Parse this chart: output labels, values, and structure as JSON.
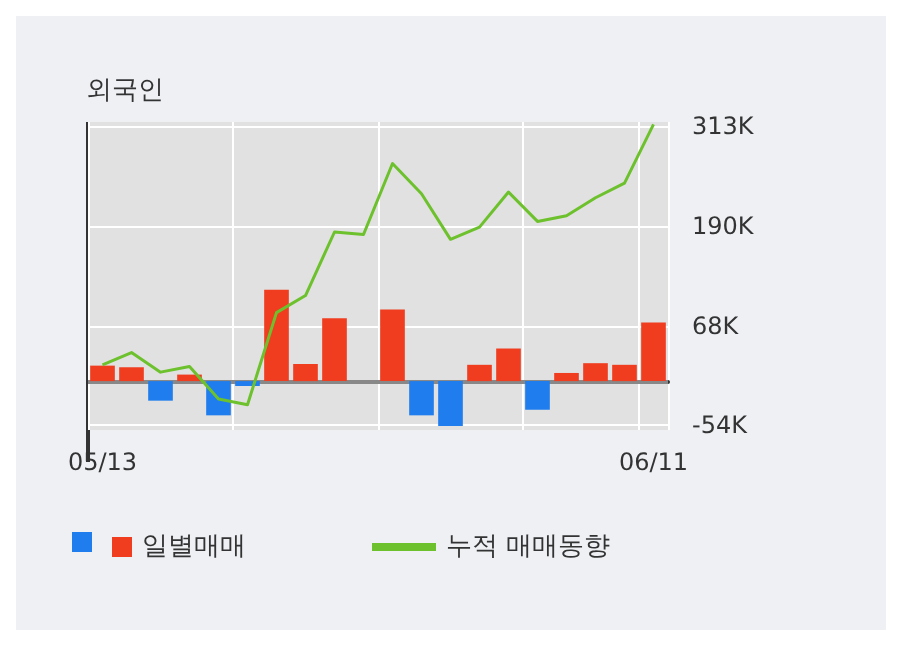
{
  "chart_data": {
    "type": "bar",
    "title": "외국인",
    "categories": [
      "05/13",
      null,
      null,
      null,
      null,
      null,
      null,
      null,
      null,
      null,
      null,
      null,
      null,
      null,
      null,
      null,
      null,
      null,
      null,
      "06/11"
    ],
    "series": [
      {
        "name": "일별매매",
        "colors": [
          "#f03c1f",
          "#f03c1f",
          "#1f7ded",
          "#f03c1f",
          "#1f7ded",
          "#1f7ded",
          "#f03c1f",
          "#f03c1f",
          "#f03c1f",
          "#f03c1f",
          "#f03c1f",
          "#1f7ded",
          "#1f7ded",
          "#f03c1f",
          "#f03c1f",
          "#1f7ded",
          "#f03c1f",
          "#f03c1f",
          "#f03c1f",
          "#f03c1f"
        ],
        "values": [
          19,
          17,
          -24,
          8,
          -42,
          -6,
          112,
          21,
          77,
          0,
          88,
          -42,
          -55,
          20,
          40,
          -35,
          10,
          22,
          20,
          72
        ]
      },
      {
        "name": "누적 매매동향",
        "type": "line",
        "color": "#6cc12c",
        "values": [
          20,
          35,
          11,
          18,
          -22,
          -29,
          84,
          105,
          183,
          180,
          267,
          230,
          174,
          189,
          232,
          196,
          203,
          225,
          243,
          315
        ]
      }
    ],
    "ylim": [
      -60,
      318
    ],
    "yticks": [
      {
        "value": 313,
        "label": "313K"
      },
      {
        "value": 190,
        "label": "190K"
      },
      {
        "value": 68,
        "label": "68K"
      },
      {
        "value": -54,
        "label": "-54K"
      }
    ],
    "grid": true,
    "legend": "bottom left",
    "marker": "none"
  }
}
